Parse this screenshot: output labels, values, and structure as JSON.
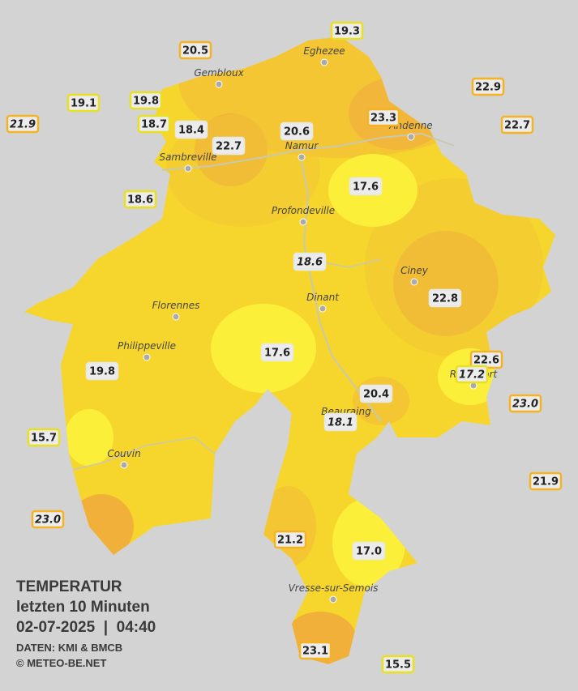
{
  "map": {
    "stations": [
      "19.3",
      "20.5",
      "22.9",
      "19.1",
      "19.8",
      "21.9",
      "18.7",
      "18.4",
      "23.3",
      "20.6",
      "22.7",
      "22.7",
      "17.6",
      "18.6",
      "18.6",
      "22.8",
      "17.6",
      "22.6",
      "17.2",
      "19.8",
      "20.4",
      "23.0",
      "18.1",
      "15.7",
      "21.9",
      "23.0",
      "21.2",
      "17.0",
      "23.1",
      "15.5"
    ],
    "cities": [
      "Eghezee",
      "Gembloux",
      "Andenne",
      "Namur",
      "Sambreville",
      "Profondeville",
      "Ciney",
      "Dinant",
      "Florennes",
      "Philippeville",
      "Rochefort",
      "Beauraing",
      "Couvin",
      "Vresse-sur-Semois"
    ],
    "legend": {
      "title": "TEMPERATUR",
      "period": "letzten 10 Minuten",
      "datetime": "02-07-2025  |  04:40",
      "source": "DATEN: KMI & BMCB",
      "credit": "© METEO-BE.NET"
    }
  }
}
